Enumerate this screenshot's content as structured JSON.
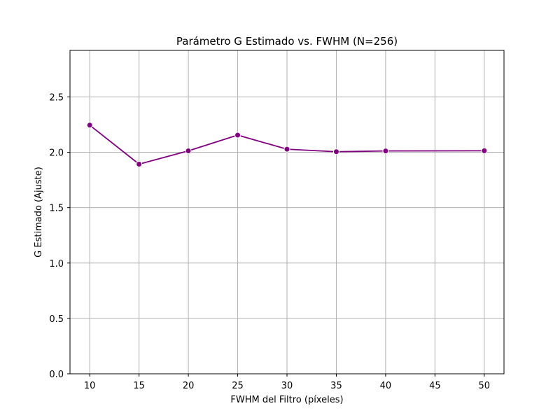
{
  "chart_data": {
    "type": "line",
    "title": "Parámetro G Estimado vs. FWHM (N=256)",
    "xlabel": "FWHM del Filtro (píxeles)",
    "ylabel": "G Estimado (Ajuste)",
    "x": [
      10,
      15,
      20,
      25,
      30,
      35,
      40,
      50
    ],
    "series": [
      {
        "values": [
          2.245,
          1.893,
          2.013,
          2.155,
          2.028,
          2.005,
          2.012,
          2.014
        ]
      }
    ],
    "xlim": [
      8,
      52
    ],
    "ylim": [
      0,
      2.92
    ],
    "xticks": [
      10,
      15,
      20,
      25,
      30,
      35,
      40,
      45,
      50
    ],
    "xtick_labels": [
      "10",
      "15",
      "20",
      "25",
      "30",
      "35",
      "40",
      "45",
      "50"
    ],
    "yticks": [
      0,
      0.5,
      1.0,
      1.5,
      2.0,
      2.5
    ],
    "ytick_labels": [
      "0.0",
      "0.5",
      "1.0",
      "1.5",
      "2.0",
      "2.5"
    ],
    "grid": true,
    "line_color": "#800080",
    "marker": "circle"
  }
}
